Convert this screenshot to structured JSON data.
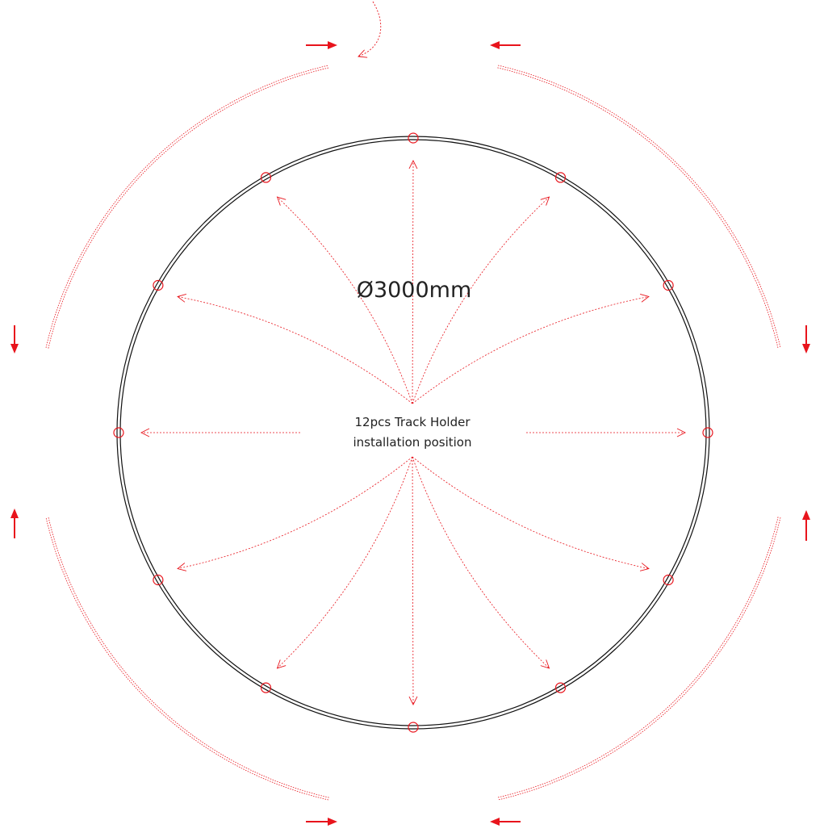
{
  "diagram": {
    "diameter_label": "Ø3000mm",
    "center_label_line1": "12pcs Track Holder",
    "center_label_line2": "installation position",
    "holder_count": 12,
    "track_segment_count": 4,
    "colors": {
      "ring": "#111111",
      "accent": "#e8141c",
      "background": "#ffffff"
    }
  }
}
